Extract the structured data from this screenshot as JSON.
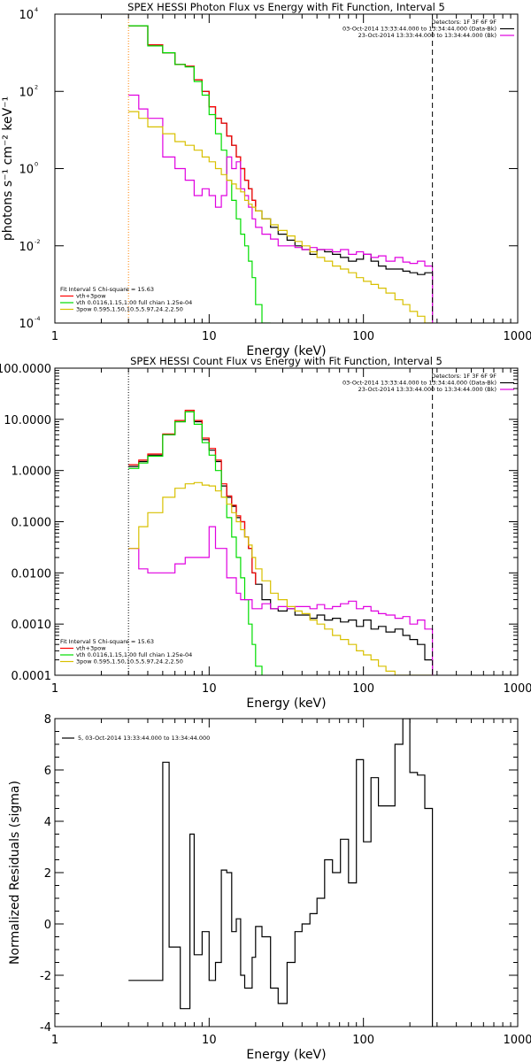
{
  "chart_data": [
    {
      "type": "line",
      "title": "SPEX HESSI Photon Flux vs Energy with Fit Function, Interval 5",
      "xlabel": "Energy (keV)",
      "ylabel": "photons s⁻¹ cm⁻² keV⁻¹",
      "xscale": "log",
      "yscale": "log",
      "xlim": [
        1,
        1000
      ],
      "ylim": [
        0.0001,
        10000
      ],
      "x_ticks": [
        1,
        10,
        100,
        1000
      ],
      "x_tick_labels": [
        "1",
        "10",
        "100",
        "1000"
      ],
      "y_ticks": [
        0.0001,
        0.01,
        1,
        100,
        10000
      ],
      "y_tick_labels": [
        [
          "10",
          "-4"
        ],
        [
          "10",
          "-2"
        ],
        [
          "10",
          "0"
        ],
        [
          "10",
          "2"
        ],
        [
          "10",
          "4"
        ]
      ],
      "vlines": [
        {
          "x": 3,
          "style": "dotted",
          "color": "#ff8000"
        },
        {
          "x": 280,
          "style": "dashed",
          "color": "#000000"
        }
      ],
      "legend_topright": [
        "Detectors: 1F 3F 6F 9F",
        "03-Oct-2014 13:33:44.000 to 13:34:44.000 (Data-Bk)",
        "23-Oct-2014 13:33:44.000 to 13:34:44.000 (Bk)"
      ],
      "legend_bottomleft": [
        "Fit Interval 5   Chi-square = 15.63",
        "vth+3pow",
        "vth 0.0116,1.15,1.00  full chian 1.25e-04",
        "3pow 0.595,1.50,10.5,5.97,24.2,2.50"
      ],
      "series": [
        {
          "color": "#000000",
          "x": [
            3,
            3.5,
            4,
            5,
            6,
            7,
            8,
            9,
            10,
            11,
            12,
            13,
            14,
            15,
            16,
            17,
            18,
            19,
            20,
            22,
            25,
            28,
            32,
            36,
            40,
            45,
            50,
            56,
            63,
            71,
            80,
            90,
            100,
            112,
            125,
            140,
            160,
            180,
            200,
            224,
            250,
            280
          ],
          "y": [
            5000,
            5000,
            1600,
            1000,
            500,
            450,
            200,
            100,
            40,
            20,
            15,
            7,
            4,
            2,
            1,
            0.5,
            0.3,
            0.15,
            0.08,
            0.05,
            0.03,
            0.02,
            0.014,
            0.01,
            0.008,
            0.006,
            0.008,
            0.007,
            0.006,
            0.005,
            0.004,
            0.0045,
            0.006,
            0.004,
            0.003,
            0.0025,
            0.0025,
            0.0022,
            0.002,
            0.0018,
            0.002,
            0.0001
          ]
        },
        {
          "color": "#ff0000",
          "x": [
            3,
            3.5,
            4,
            5,
            6,
            7,
            8,
            9,
            10,
            11,
            12,
            13,
            14,
            15,
            16,
            17,
            18,
            19,
            20
          ],
          "y": [
            5000,
            5000,
            1600,
            1000,
            500,
            450,
            200,
            100,
            40,
            20,
            15,
            7,
            4,
            2,
            1,
            0.5,
            0.3,
            0.15,
            0.08
          ]
        },
        {
          "color": "#00dd00",
          "x": [
            3,
            3.5,
            4,
            5,
            6,
            7,
            8,
            9,
            10,
            11,
            12,
            13,
            14,
            15,
            16,
            17,
            18,
            19,
            20,
            22,
            25
          ],
          "y": [
            5000,
            5000,
            1500,
            1000,
            500,
            430,
            180,
            80,
            25,
            8,
            3,
            0.5,
            0.15,
            0.05,
            0.02,
            0.01,
            0.004,
            0.0015,
            0.0003,
            0.0001,
            0.0001
          ]
        },
        {
          "color": "#e000e0",
          "x": [
            3,
            3.5,
            4,
            5,
            6,
            7,
            8,
            9,
            10,
            11,
            12,
            13,
            14,
            15,
            16,
            17,
            18,
            19,
            20,
            22,
            25,
            28,
            32,
            36,
            40,
            45,
            50,
            56,
            63,
            71,
            80,
            90,
            100,
            112,
            125,
            140,
            160,
            180,
            200,
            224,
            250,
            280
          ],
          "y": [
            80,
            35,
            20,
            2,
            1,
            0.5,
            0.2,
            0.3,
            0.2,
            0.1,
            0.2,
            2,
            1,
            1.5,
            0.3,
            0.2,
            0.1,
            0.05,
            0.03,
            0.02,
            0.015,
            0.01,
            0.01,
            0.009,
            0.008,
            0.009,
            0.008,
            0.008,
            0.007,
            0.008,
            0.006,
            0.007,
            0.006,
            0.005,
            0.0055,
            0.004,
            0.005,
            0.0038,
            0.0035,
            0.004,
            0.003,
            0.0001
          ]
        },
        {
          "color": "#d8c000",
          "x": [
            3,
            3.5,
            4,
            5,
            6,
            7,
            8,
            9,
            10,
            11,
            12,
            13,
            14,
            15,
            16,
            17,
            18,
            19,
            20,
            22,
            25,
            28,
            32,
            36,
            40,
            45,
            50,
            56,
            63,
            71,
            80,
            90,
            100,
            112,
            125,
            140,
            160,
            180,
            200,
            224,
            250,
            280
          ],
          "y": [
            30,
            20,
            12,
            8,
            5,
            4,
            3,
            2,
            1.5,
            1,
            0.7,
            0.5,
            0.4,
            0.3,
            0.25,
            0.15,
            0.12,
            0.1,
            0.08,
            0.05,
            0.035,
            0.025,
            0.018,
            0.013,
            0.01,
            0.007,
            0.005,
            0.004,
            0.003,
            0.0025,
            0.002,
            0.0015,
            0.0012,
            0.001,
            0.0008,
            0.0006,
            0.0004,
            0.0003,
            0.0002,
            0.00015,
            0.0001,
            0.0001
          ]
        }
      ]
    },
    {
      "type": "line",
      "title": "SPEX HESSI Count Flux vs Energy with Fit Function, Interval 5",
      "xlabel": "Energy (keV)",
      "ylabel": "",
      "xscale": "log",
      "yscale": "log",
      "xlim": [
        1,
        1000
      ],
      "ylim": [
        0.0001,
        100
      ],
      "x_ticks": [
        1,
        10,
        100,
        1000
      ],
      "x_tick_labels": [
        "1",
        "10",
        "100",
        "1000"
      ],
      "y_ticks": [
        0.0001,
        0.001,
        0.01,
        0.1,
        1,
        10,
        100
      ],
      "y_tick_labels": [
        "0.0001",
        "0.0010",
        "0.0100",
        "0.1000",
        "1.0000",
        "10.0000",
        "100.0000"
      ],
      "vlines": [
        {
          "x": 3,
          "style": "dotted",
          "color": "#000000"
        },
        {
          "x": 280,
          "style": "dashed",
          "color": "#000000"
        }
      ],
      "legend_topright": [
        "Detectors: 1F 3F 6F 9F",
        "03-Oct-2014 13:33:44.000 to 13:34:44.000 (Data-Bk)",
        "23-Oct-2014 13:33:44.000 to 13:34:44.000 (Bk)"
      ],
      "legend_bottomleft": [
        "Fit Interval 5   Chi-square = 15.63",
        "vth+3pow",
        "vth 0.0116,1.15,1.00  full chian 1.25e-04",
        "3pow 0.595,1.50,10.5,5.97,24.2,2.50"
      ],
      "series": [
        {
          "color": "#000000",
          "x": [
            3,
            3.5,
            4,
            5,
            6,
            7,
            8,
            9,
            10,
            11,
            12,
            13,
            14,
            15,
            16,
            17,
            18,
            19,
            20,
            22,
            25,
            28,
            32,
            36,
            40,
            45,
            50,
            56,
            63,
            71,
            80,
            90,
            100,
            112,
            125,
            140,
            160,
            180,
            200,
            224,
            250,
            280
          ],
          "y": [
            1.2,
            1.5,
            2,
            5,
            9,
            14,
            9,
            4,
            2.5,
            1.5,
            0.5,
            0.3,
            0.2,
            0.12,
            0.1,
            0.05,
            0.03,
            0.01,
            0.006,
            0.003,
            0.002,
            0.0018,
            0.002,
            0.0015,
            0.0015,
            0.0013,
            0.0015,
            0.0012,
            0.0013,
            0.0011,
            0.0012,
            0.0009,
            0.0012,
            0.0008,
            0.0009,
            0.0007,
            0.0008,
            0.0006,
            0.0005,
            0.0004,
            0.0002,
            0.0001
          ]
        },
        {
          "color": "#ff0000",
          "x": [
            3,
            3.5,
            4,
            5,
            6,
            7,
            8,
            9,
            10,
            11,
            12,
            13,
            14,
            15,
            16,
            17,
            18,
            19,
            20
          ],
          "y": [
            1.3,
            1.6,
            2.1,
            5.2,
            9.5,
            15,
            9.5,
            4.3,
            2.7,
            1.6,
            0.55,
            0.32,
            0.21,
            0.13,
            0.1,
            0.05,
            0.03,
            0.01,
            0.006
          ]
        },
        {
          "color": "#00dd00",
          "x": [
            3,
            3.5,
            4,
            5,
            6,
            7,
            8,
            9,
            10,
            11,
            12,
            13,
            14,
            15,
            16,
            17,
            18,
            19,
            20,
            22
          ],
          "y": [
            1.1,
            1.4,
            1.9,
            5,
            9,
            14,
            8,
            3.5,
            2,
            1,
            0.3,
            0.12,
            0.05,
            0.02,
            0.008,
            0.003,
            0.001,
            0.0004,
            0.00015,
            0.0001
          ]
        },
        {
          "color": "#e000e0",
          "x": [
            3,
            3.5,
            4,
            5,
            6,
            7,
            8,
            9,
            10,
            11,
            12,
            13,
            14,
            15,
            16,
            17,
            18,
            19,
            20,
            22,
            25,
            28,
            32,
            36,
            40,
            45,
            50,
            56,
            63,
            71,
            80,
            90,
            100,
            112,
            125,
            140,
            160,
            180,
            200,
            224,
            250,
            280
          ],
          "y": [
            0.03,
            0.012,
            0.01,
            0.01,
            0.015,
            0.02,
            0.02,
            0.02,
            0.08,
            0.03,
            0.03,
            0.008,
            0.008,
            0.004,
            0.003,
            0.003,
            0.003,
            0.002,
            0.002,
            0.0025,
            0.002,
            0.0022,
            0.002,
            0.0022,
            0.0022,
            0.002,
            0.0024,
            0.002,
            0.0022,
            0.0025,
            0.0028,
            0.002,
            0.0022,
            0.0018,
            0.0016,
            0.0015,
            0.0013,
            0.0014,
            0.001,
            0.0012,
            0.0008,
            0.0001
          ]
        },
        {
          "color": "#d8c000",
          "x": [
            3,
            3.5,
            4,
            5,
            6,
            7,
            8,
            9,
            10,
            11,
            12,
            13,
            14,
            15,
            16,
            17,
            18,
            19,
            20,
            22,
            25,
            28,
            32,
            36,
            40,
            45,
            50,
            56,
            63,
            71,
            80,
            90,
            100,
            112,
            125,
            140,
            160,
            180,
            200,
            224,
            250,
            280
          ],
          "y": [
            0.03,
            0.08,
            0.15,
            0.3,
            0.45,
            0.55,
            0.58,
            0.52,
            0.5,
            0.4,
            0.3,
            0.22,
            0.15,
            0.1,
            0.07,
            0.05,
            0.035,
            0.02,
            0.012,
            0.007,
            0.004,
            0.003,
            0.0022,
            0.0018,
            0.0016,
            0.0012,
            0.001,
            0.0008,
            0.0006,
            0.0005,
            0.0004,
            0.0003,
            0.00025,
            0.0002,
            0.00015,
            0.00012,
            0.0001,
            0.0001,
            0.0001,
            0.0001,
            0.0001,
            0.0001
          ]
        }
      ]
    },
    {
      "type": "line",
      "title": "",
      "xlabel": "Energy (keV)",
      "ylabel": "Normalized Residuals (sigma)",
      "xscale": "log",
      "yscale": "linear",
      "xlim": [
        1,
        1000
      ],
      "ylim": [
        -4,
        8
      ],
      "x_ticks": [
        1,
        10,
        100,
        1000
      ],
      "x_tick_labels": [
        "1",
        "10",
        "100",
        "1000"
      ],
      "y_ticks": [
        -4,
        -2,
        0,
        2,
        4,
        6,
        8
      ],
      "y_tick_labels": [
        "-4",
        "-2",
        "0",
        "2",
        "4",
        "6",
        "8"
      ],
      "legend_topleft": [
        "5, 03-Oct-2014 13:33:44.000 to 13:34:44.000"
      ],
      "series": [
        {
          "color": "#000000",
          "x": [
            3,
            4,
            5,
            5.5,
            6.5,
            7.5,
            8,
            9,
            10,
            11,
            12,
            13,
            14,
            15,
            16,
            17,
            18,
            19,
            20,
            22,
            25,
            28,
            32,
            36,
            40,
            45,
            50,
            56,
            63,
            71,
            80,
            90,
            100,
            112,
            125,
            140,
            160,
            180,
            200,
            224,
            250,
            280
          ],
          "y": [
            -2.2,
            -2.2,
            6.3,
            -0.9,
            -3.3,
            3.5,
            -1.2,
            -0.3,
            -2.2,
            -1.5,
            2.1,
            2.0,
            -0.3,
            0.2,
            -2.0,
            -2.5,
            -2.5,
            -1.3,
            -0.1,
            -0.5,
            -2.5,
            -3.1,
            -1.5,
            -0.3,
            0.0,
            0.4,
            1.0,
            2.5,
            2.0,
            3.3,
            1.6,
            6.4,
            3.2,
            5.7,
            4.6,
            4.6,
            7.0,
            8.0,
            5.9,
            5.8,
            4.5,
            -4.0
          ]
        }
      ]
    }
  ]
}
